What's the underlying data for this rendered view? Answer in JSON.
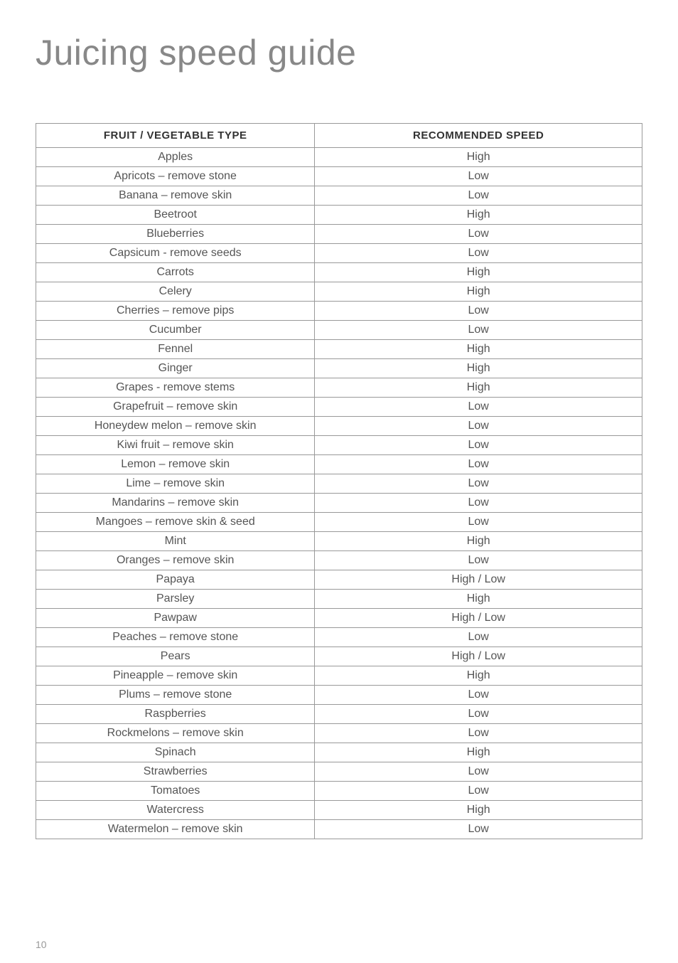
{
  "title": "Juicing speed guide",
  "columns": {
    "col1": "FRUIT / VEGETABLE TYPE",
    "col2": "RECOMMENDED SPEED"
  },
  "rows": [
    {
      "name": "Apples",
      "speed": "High"
    },
    {
      "name": "Apricots – remove stone",
      "speed": "Low"
    },
    {
      "name": "Banana – remove skin",
      "speed": "Low"
    },
    {
      "name": "Beetroot",
      "speed": "High"
    },
    {
      "name": "Blueberries",
      "speed": "Low"
    },
    {
      "name": "Capsicum - remove seeds",
      "speed": "Low"
    },
    {
      "name": "Carrots",
      "speed": "High"
    },
    {
      "name": "Celery",
      "speed": "High"
    },
    {
      "name": "Cherries – remove pips",
      "speed": "Low"
    },
    {
      "name": "Cucumber",
      "speed": "Low"
    },
    {
      "name": "Fennel",
      "speed": "High"
    },
    {
      "name": "Ginger",
      "speed": "High"
    },
    {
      "name": "Grapes - remove stems",
      "speed": "High"
    },
    {
      "name": "Grapefruit – remove skin",
      "speed": "Low"
    },
    {
      "name": "Honeydew melon – remove skin",
      "speed": "Low"
    },
    {
      "name": "Kiwi fruit – remove skin",
      "speed": "Low"
    },
    {
      "name": "Lemon – remove skin",
      "speed": "Low"
    },
    {
      "name": "Lime – remove skin",
      "speed": "Low"
    },
    {
      "name": "Mandarins – remove skin",
      "speed": "Low"
    },
    {
      "name": "Mangoes – remove skin & seed",
      "speed": "Low"
    },
    {
      "name": "Mint",
      "speed": "High"
    },
    {
      "name": "Oranges – remove skin",
      "speed": "Low"
    },
    {
      "name": "Papaya",
      "speed": "High / Low"
    },
    {
      "name": "Parsley",
      "speed": "High"
    },
    {
      "name": "Pawpaw",
      "speed": "High / Low"
    },
    {
      "name": "Peaches – remove stone",
      "speed": "Low"
    },
    {
      "name": "Pears",
      "speed": "High / Low"
    },
    {
      "name": "Pineapple – remove skin",
      "speed": "High"
    },
    {
      "name": "Plums – remove stone",
      "speed": "Low"
    },
    {
      "name": "Raspberries",
      "speed": "Low"
    },
    {
      "name": "Rockmelons – remove skin",
      "speed": "Low"
    },
    {
      "name": "Spinach",
      "speed": "High"
    },
    {
      "name": "Strawberries",
      "speed": "Low"
    },
    {
      "name": "Tomatoes",
      "speed": "Low"
    },
    {
      "name": "Watercress",
      "speed": "High"
    },
    {
      "name": "Watermelon – remove skin",
      "speed": "Low"
    }
  ],
  "page_number": "10",
  "styling": {
    "title_color": "#888888",
    "title_fontsize": 50,
    "title_fontweight": 300,
    "header_color": "#333333",
    "header_fontsize": 15,
    "cell_color": "#555555",
    "cell_fontsize": 16,
    "border_color": "#999999",
    "background_color": "#ffffff",
    "page_number_color": "#999999",
    "page_number_fontsize": 14,
    "col1_width_pct": 46,
    "col2_width_pct": 54
  }
}
